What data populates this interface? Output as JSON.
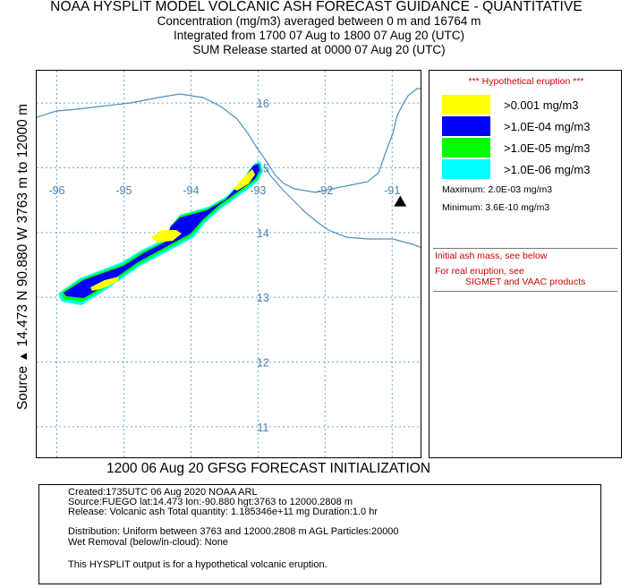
{
  "header": {
    "line1": "NOAA HYSPLIT MODEL VOLCANIC ASH FORECAST GUIDANCE - QUANTITATIVE",
    "line2": "Concentration  (mg/m3) averaged between      0 m and 16764 m",
    "line3": "Integrated from 1700 07 Aug to 1800 07 Aug 20 (UTC)",
    "line4": "SUM  Release started at 0000 07 Aug 20 (UTC)"
  },
  "source_label": {
    "prefix": "Source",
    "triangle": "▲",
    "text": "14.473  N  90.880  W  3763 m to 12000 m"
  },
  "map": {
    "lon_ticks": [
      -96,
      -95,
      -94,
      -93,
      -92,
      -91
    ],
    "lat_ticks": [
      16,
      15,
      14,
      13,
      12,
      11
    ],
    "lon_range": [
      -96.3,
      -90.55
    ],
    "lat_range": [
      16.5,
      10.5
    ],
    "volcano": {
      "lon": -90.88,
      "lat": 14.473,
      "symbol": "triangle"
    },
    "grid": true,
    "colors": {
      "coast": "#4a90c0",
      "grid": "#6fa8d0",
      "labels": "#4a7fae"
    }
  },
  "init_line": "1200 06 Aug 20 GFSG FORECAST INITIALIZATION",
  "legend": {
    "header": "*** Hypothetical eruption ***",
    "items": [
      {
        "label": ">0.001 mg/m3",
        "color": "#ffff00"
      },
      {
        "label": ">1.0E-04 mg/m3",
        "color": "#0000ff"
      },
      {
        "label": ">1.0E-05 mg/m3",
        "color": "#00ff00"
      },
      {
        "label": ">1.0E-06 mg/m3",
        "color": "#00ffff"
      }
    ],
    "maximum": "Maximum: 2.0E-03 mg/m3",
    "minimum": "Minimum: 3.6E-10 mg/m3",
    "note1": "Initial ash mass, see below",
    "note2a": "For real eruption, see",
    "note2b": "SIGMET and VAAC products"
  },
  "info": {
    "created": "Created:1735UTC 06 Aug 2020 NOAA ARL",
    "source": "Source:FUEGO  lat:14.473  lon:-90.880  hgt:3763 to 12000.2808 m",
    "release": "Release:  Volcanic ash    Total quantity:  1.185346e+11 mg   Duration:1.0 hr",
    "distribution": "Distribution: Uniform between 3763 and 12000.2808 m AGL   Particles:20000",
    "wet_removal": "Wet Removal (below/in-cloud): None",
    "disclaimer": "This HYSPLIT output is for a hypothetical volcanic eruption."
  }
}
